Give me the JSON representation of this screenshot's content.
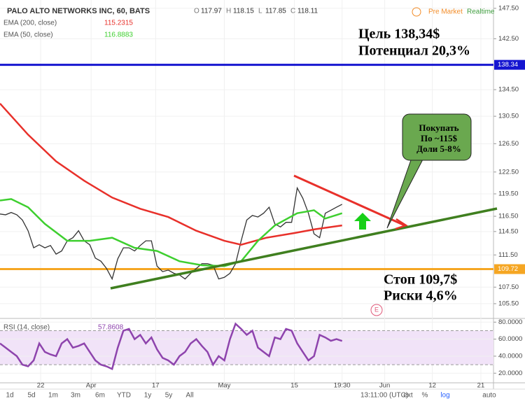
{
  "header": {
    "title": "PALO ALTO NETWORKS INC, 60, BATS",
    "ohlc": [
      "O",
      "117.97",
      "H",
      "118.15",
      "L",
      "117.85",
      "C",
      "118.11"
    ],
    "pre_market": "Pre Market",
    "realtime": "Realtime"
  },
  "chart_data": [
    {
      "type": "line",
      "log_scale": true,
      "grid": true,
      "xlim": [
        0,
        88
      ],
      "ylim": [
        103.75,
        148.9
      ],
      "yticks": [
        {
          "value": 147.5,
          "label": "147.50"
        },
        {
          "value": 142.5,
          "label": "142.50"
        },
        {
          "value": 134.5,
          "label": "134.50"
        },
        {
          "value": 130.5,
          "label": "130.50"
        },
        {
          "value": 126.5,
          "label": "126.50"
        },
        {
          "value": 122.5,
          "label": "122.50"
        },
        {
          "value": 119.5,
          "label": "119.50"
        },
        {
          "value": 116.5,
          "label": "116.50"
        },
        {
          "value": 114.5,
          "label": "114.50"
        },
        {
          "value": 111.5,
          "label": "111.50"
        },
        {
          "value": 107.5,
          "label": "107.50"
        },
        {
          "value": 105.5,
          "label": "105.50"
        }
      ],
      "xticks": [
        {
          "value": 7.25,
          "label": "22"
        },
        {
          "value": 16.25,
          "label": "Apr"
        },
        {
          "value": 27.75,
          "label": "17"
        },
        {
          "value": 40,
          "label": "May"
        },
        {
          "value": 52.5,
          "label": "15"
        },
        {
          "value": 61,
          "label": "19:30"
        },
        {
          "value": 68.6,
          "label": "Jun"
        },
        {
          "value": 77.1,
          "label": "12"
        },
        {
          "value": 85.75,
          "label": "21"
        }
      ],
      "series": [
        {
          "color": "#333333",
          "x": [
            0,
            1,
            2,
            3,
            4,
            5,
            6,
            7,
            8,
            9,
            10,
            11,
            12,
            13,
            14,
            15,
            16,
            17,
            18,
            19,
            20,
            21,
            22,
            23,
            24,
            25,
            26,
            27,
            28,
            29,
            30,
            31,
            32,
            33,
            34,
            35,
            36,
            37,
            38,
            39,
            40,
            41,
            42,
            43,
            44,
            45,
            46,
            47,
            48,
            49,
            50,
            51,
            52,
            53,
            54,
            55,
            56,
            57,
            58,
            59,
            60,
            61
          ],
          "values": [
            116.8,
            116.7,
            117,
            116.7,
            116,
            114.6,
            112.4,
            112.8,
            112.4,
            112.7,
            111.6,
            112,
            113.3,
            113.7,
            114.6,
            113.3,
            112.8,
            111.1,
            110.7,
            109.8,
            108.5,
            111,
            112.4,
            112.4,
            112,
            112.7,
            113.3,
            113.3,
            110.1,
            109.4,
            109.6,
            109.2,
            109,
            108.5,
            109.2,
            109.8,
            110.4,
            110.4,
            110.2,
            108.5,
            108.7,
            109.2,
            110.4,
            113.3,
            116,
            116.6,
            116.4,
            116.9,
            117.7,
            115.5,
            115.1,
            115.7,
            115.7,
            120.3,
            118.9,
            116.9,
            114.2,
            113.7,
            116.9,
            117.3,
            117.7,
            118.1
          ]
        },
        {
          "name": "EMA (200, close)",
          "legend_value": "115.2315",
          "color": "#e8302a",
          "x": [
            0,
            5,
            10,
            15,
            20,
            25,
            30,
            35,
            40,
            43,
            47.5,
            52.5,
            56.25,
            61
          ],
          "values": [
            132.4,
            127.8,
            124,
            121.3,
            119,
            117.5,
            116.4,
            114.6,
            113.3,
            112.8,
            113.7,
            114.3,
            114.8,
            115.3
          ]
        },
        {
          "name": "EMA (50, close)",
          "legend_value": "116.8883",
          "color": "#3ecf2f",
          "x": [
            0,
            2,
            5,
            8,
            12,
            16,
            20,
            24,
            28,
            32,
            36,
            40,
            43,
            46,
            49,
            53,
            56,
            58,
            61
          ],
          "values": [
            118.6,
            118.8,
            117.7,
            115.5,
            113.3,
            113.3,
            113.7,
            112.4,
            112,
            110.7,
            110.2,
            110.1,
            110.7,
            113.3,
            115.3,
            116.9,
            117.3,
            116.2,
            116.9
          ]
        }
      ],
      "hlines": [
        {
          "value": 138.34,
          "color": "#1515d0"
        },
        {
          "value": 109.72,
          "color": "#f5a623"
        }
      ],
      "annotations": [
        "Цель 138,34$",
        "Потенциал 20,3%",
        "Стоп 109,7$",
        "Риски 4,6%"
      ],
      "callout": [
        "Покупать",
        "По ~115$",
        "Доли 5-8%"
      ],
      "event": "E"
    },
    {
      "type": "line",
      "grid": true,
      "xlim": [
        0,
        88
      ],
      "ylim": [
        8.7,
        84.35
      ],
      "yticks": [
        {
          "value": 80,
          "label": "80.0000"
        },
        {
          "value": 60,
          "label": "60.0000"
        },
        {
          "value": 40,
          "label": "40.0000"
        },
        {
          "value": 20,
          "label": "20.0000"
        }
      ],
      "band": [
        30,
        70
      ],
      "series": [
        {
          "name": "RSI (14, close)",
          "legend_value": "57.8608",
          "color": "#8e44ad",
          "x": [
            0,
            1,
            2,
            3,
            4,
            5,
            6,
            7,
            8,
            9,
            10,
            11,
            12,
            13,
            14,
            15,
            16,
            17,
            18,
            19,
            20,
            21,
            22,
            23,
            24,
            25,
            26,
            27,
            28,
            29,
            30,
            31,
            32,
            33,
            34,
            35,
            36,
            37,
            38,
            39,
            40,
            41,
            42,
            43,
            44,
            45,
            46,
            47,
            48,
            49,
            50,
            51,
            52,
            53,
            54,
            55,
            56,
            57,
            58,
            59,
            60,
            61
          ],
          "values": [
            55,
            50,
            45,
            40,
            30,
            28,
            35,
            55,
            45,
            42,
            40,
            55,
            60,
            50,
            52,
            55,
            45,
            35,
            30,
            28,
            25,
            50,
            70,
            72,
            60,
            65,
            55,
            62,
            48,
            38,
            35,
            30,
            40,
            45,
            55,
            60,
            52,
            45,
            30,
            40,
            35,
            60,
            78,
            72,
            65,
            70,
            50,
            45,
            40,
            62,
            60,
            72,
            70,
            55,
            45,
            35,
            40,
            65,
            62,
            58,
            60,
            57.86
          ]
        }
      ]
    }
  ],
  "toolbar": {
    "ranges": [
      "1d",
      "5d",
      "1m",
      "3m",
      "6m",
      "YTD",
      "1y",
      "5y",
      "All"
    ],
    "time": "13:11:00 (UTC)",
    "options": [
      "ext",
      "%",
      "log",
      "auto"
    ]
  }
}
